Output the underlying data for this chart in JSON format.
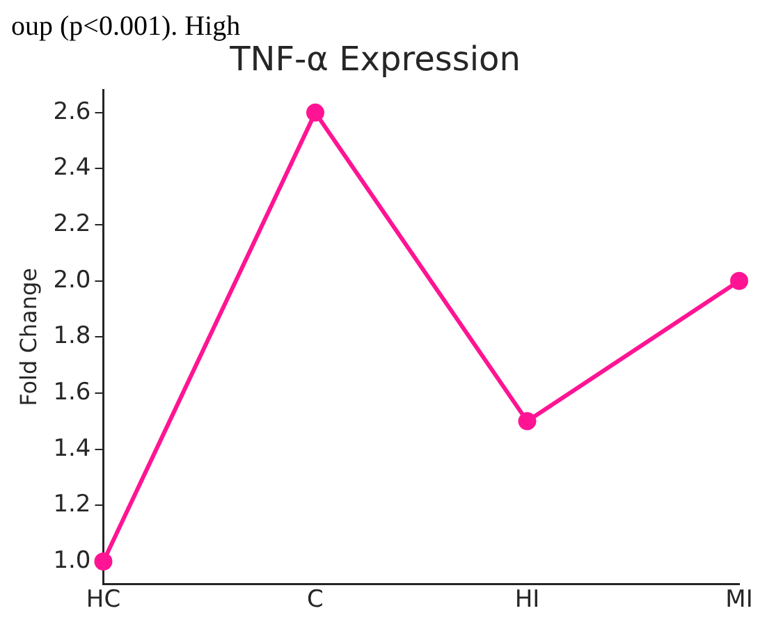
{
  "chart_data": {
    "type": "line",
    "title": "TNF-α Expression",
    "ylabel": "Fold Change",
    "annotations": [
      "oup (p<0.001). High"
    ],
    "categories": [
      "HC",
      "C",
      "HI",
      "MI"
    ],
    "series": [
      {
        "color": "#ff1493",
        "values": [
          1.0,
          2.6,
          1.5,
          2.0
        ]
      }
    ],
    "ylim": [
      0.92,
      2.68
    ],
    "yticks": [
      {
        "value": 1,
        "label": "1.0"
      },
      {
        "value": 1.2,
        "label": "1.2"
      },
      {
        "value": 1.4,
        "label": "1.4"
      },
      {
        "value": 1.6,
        "label": "1.6"
      },
      {
        "value": 1.8,
        "label": "1.8"
      },
      {
        "value": 2,
        "label": "2.0"
      },
      {
        "value": 2.2,
        "label": "2.2"
      },
      {
        "value": 2.4,
        "label": "2.4"
      },
      {
        "value": 2.6,
        "label": "2.6"
      }
    ],
    "marker": "circle",
    "grid": false,
    "legend": false
  }
}
